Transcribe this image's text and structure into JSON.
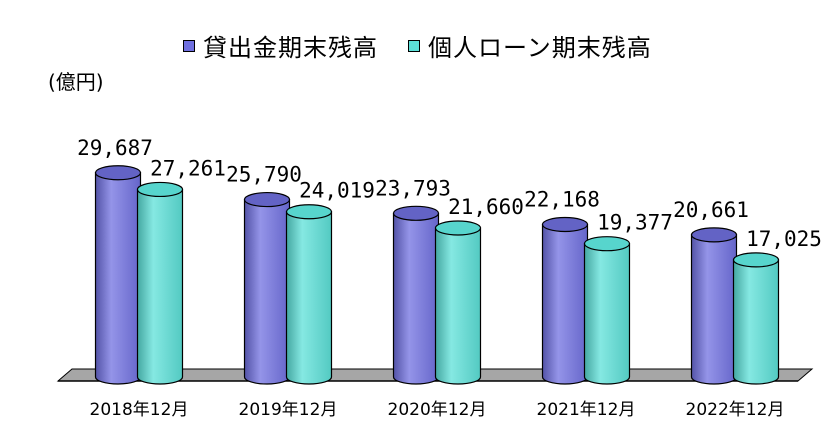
{
  "chart_data": {
    "type": "bar",
    "unit": "(億円)",
    "categories": [
      "2018年12月",
      "2019年12月",
      "2020年12月",
      "2021年12月",
      "2022年12月"
    ],
    "series": [
      {
        "name": "貸出金期末残高",
        "values": [
          29687,
          25790,
          23793,
          22168,
          20661
        ],
        "value_labels": [
          "29,687",
          "25,790",
          "23,793",
          "22,168",
          "20,661"
        ],
        "color": "#7070e0"
      },
      {
        "name": "個人ローン期末残高",
        "values": [
          27261,
          24019,
          21660,
          19377,
          17025
        ],
        "value_labels": [
          "27,261",
          "24,019",
          "21,660",
          "19,377",
          "17,025"
        ],
        "color": "#5ce0d8"
      }
    ],
    "style": "3d-cylinder",
    "grid": false,
    "legend_position": "top"
  }
}
